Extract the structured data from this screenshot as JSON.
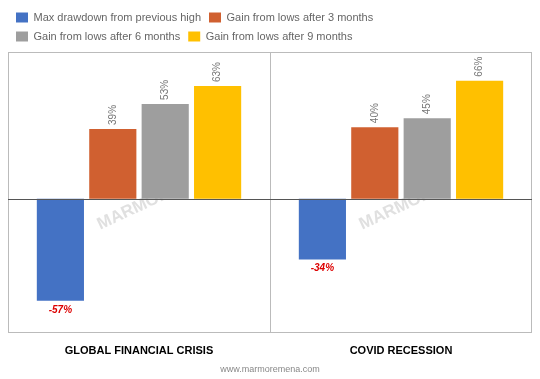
{
  "chart_data": {
    "type": "bar",
    "categories": [
      "GLOBAL FINANCIAL CRISIS",
      "COVID RECESSION"
    ],
    "series": [
      {
        "name": "Max drawdown from previous high",
        "color": "#4472C4",
        "values": [
          -57,
          -34
        ],
        "value_labels": [
          "-57%",
          "-34%"
        ]
      },
      {
        "name": "Gain from lows after 3 months",
        "color": "#D06030",
        "values": [
          39,
          40
        ],
        "value_labels": [
          "39%",
          "40%"
        ]
      },
      {
        "name": "Gain from lows after 6 months",
        "color": "#9E9E9E",
        "values": [
          53,
          45
        ],
        "value_labels": [
          "53%",
          "45%"
        ]
      },
      {
        "name": "Gain from lows after 9 months",
        "color": "#FFC000",
        "values": [
          63,
          66
        ],
        "value_labels": [
          "63%",
          "66%"
        ]
      }
    ],
    "ylim": [
      -75,
      82
    ],
    "yticks": [],
    "tick_labels": "x",
    "grid": false,
    "legend": "upper left",
    "data_labels": true,
    "watermark": "MARMORE",
    "footer": "www.marmoremena.com"
  }
}
